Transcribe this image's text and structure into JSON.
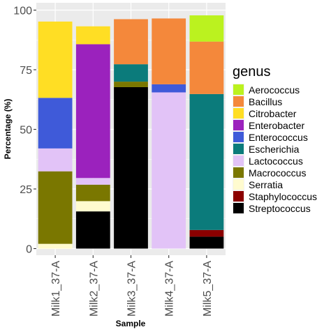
{
  "chart_data": {
    "type": "bar",
    "stacked": true,
    "xlabel": "Sample",
    "ylabel": "Percentage (%)",
    "ylim": [
      0,
      100
    ],
    "yticks": [
      0,
      25,
      50,
      75,
      100
    ],
    "grid": true,
    "legend_position": "right",
    "legend_title": "genus",
    "categories": [
      "Milk1_37-A",
      "Milk2_37-A",
      "Milk3_37-A",
      "Milk4_37-A",
      "Milk5_37-A"
    ],
    "stack_order": [
      "Aerococcus",
      "Bacillus",
      "Citrobacter",
      "Enterobacter",
      "Enterococcus",
      "Escherichia",
      "Lactococcus",
      "Macrococcus",
      "Serratia",
      "Staphylococcus",
      "Streptococcus"
    ],
    "series": [
      {
        "name": "Aerococcus",
        "color": "#bbf21f",
        "values": [
          0,
          0,
          0,
          0,
          11
        ]
      },
      {
        "name": "Bacillus",
        "color": "#f4883b",
        "values": [
          0,
          0,
          18.9,
          27.6,
          22
        ]
      },
      {
        "name": "Citrobacter",
        "color": "#ffde24",
        "values": [
          32,
          7.5,
          0,
          0,
          0
        ]
      },
      {
        "name": "Enterobacter",
        "color": "#9b22bd",
        "values": [
          0,
          56.1,
          0,
          0,
          0
        ]
      },
      {
        "name": "Enterococcus",
        "color": "#3f5ad9",
        "values": [
          21.2,
          0,
          0,
          3.4,
          0
        ]
      },
      {
        "name": "Escherichia",
        "color": "#0b7b7b",
        "values": [
          0,
          0,
          7.3,
          0,
          57
        ]
      },
      {
        "name": "Lactococcus",
        "color": "#e2c3f7",
        "values": [
          9.6,
          2.8,
          0,
          65.5,
          0
        ]
      },
      {
        "name": "Macrococcus",
        "color": "#7a7700",
        "values": [
          30.4,
          6.9,
          2.3,
          0,
          0
        ]
      },
      {
        "name": "Serratia",
        "color": "#fffbcf",
        "values": [
          2,
          4.3,
          0,
          0,
          0
        ]
      },
      {
        "name": "Staphylococcus",
        "color": "#8b0000",
        "values": [
          0,
          0,
          0,
          0,
          2.8
        ]
      },
      {
        "name": "Streptococcus",
        "color": "#000000",
        "values": [
          0,
          15.6,
          67.7,
          0,
          5
        ]
      }
    ]
  }
}
